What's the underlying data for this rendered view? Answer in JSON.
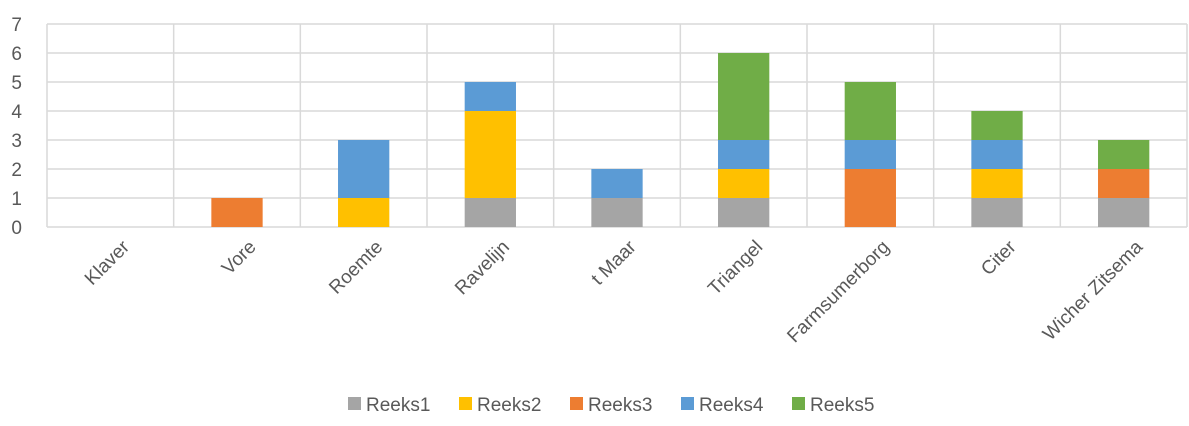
{
  "chart_data": {
    "type": "bar",
    "stacked": true,
    "categories": [
      "Klaver",
      "Vore",
      "Roemte",
      "Ravelijn",
      "t Maar",
      "Triangel",
      "Farmsumerborg",
      "Citer",
      "Wicher Zitsema"
    ],
    "series": [
      {
        "name": "Reeks1",
        "color": "#A5A5A5",
        "values": [
          0,
          0,
          0,
          1,
          1,
          1,
          0,
          1,
          1
        ]
      },
      {
        "name": "Reeks2",
        "color": "#FFC000",
        "values": [
          0,
          0,
          1,
          3,
          0,
          1,
          0,
          1,
          0
        ]
      },
      {
        "name": "Reeks3",
        "color": "#ED7D31",
        "values": [
          0,
          1,
          0,
          0,
          0,
          0,
          2,
          0,
          1
        ]
      },
      {
        "name": "Reeks4",
        "color": "#5B9BD5",
        "values": [
          0,
          0,
          2,
          1,
          1,
          1,
          1,
          1,
          0
        ]
      },
      {
        "name": "Reeks5",
        "color": "#70AD47",
        "values": [
          0,
          0,
          0,
          0,
          0,
          3,
          2,
          1,
          1
        ]
      }
    ],
    "y_ticks": [
      "0",
      "1",
      "2",
      "3",
      "4",
      "5",
      "6",
      "7"
    ],
    "ylim": [
      0,
      7
    ],
    "grid": true,
    "legend_position": "bottom",
    "xlabel": "",
    "ylabel": "",
    "title": ""
  }
}
